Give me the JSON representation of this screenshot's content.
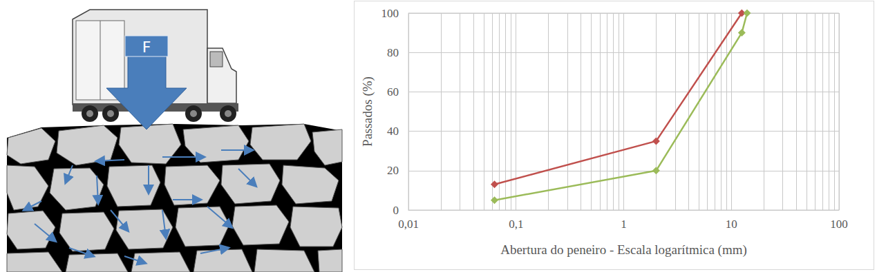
{
  "chart_data": {
    "type": "line",
    "x_label": "Abertura do peneiro - Escala logarítmica (mm)",
    "y_label": "Passados (%)",
    "series": [
      {
        "color": "#c0504d",
        "marker": "diamond",
        "x": [
          0.063,
          2,
          12.5
        ],
        "values": [
          13,
          35,
          100
        ]
      },
      {
        "color": "#9bbb59",
        "marker": "diamond",
        "x": [
          0.063,
          2,
          12.5,
          14
        ],
        "values": [
          5,
          20,
          90,
          100
        ]
      }
    ],
    "log": "x",
    "xlim": [
      0.01,
      100
    ],
    "xticks": [
      {
        "value": 0.01,
        "label": "0,01"
      },
      {
        "value": 0.1,
        "label": "0,1"
      },
      1,
      10,
      100
    ],
    "ylim": [
      0,
      100
    ],
    "yticks": [
      0,
      20,
      40,
      60,
      80,
      100
    ],
    "grid": true
  },
  "illustration": {
    "force_label": "F"
  }
}
